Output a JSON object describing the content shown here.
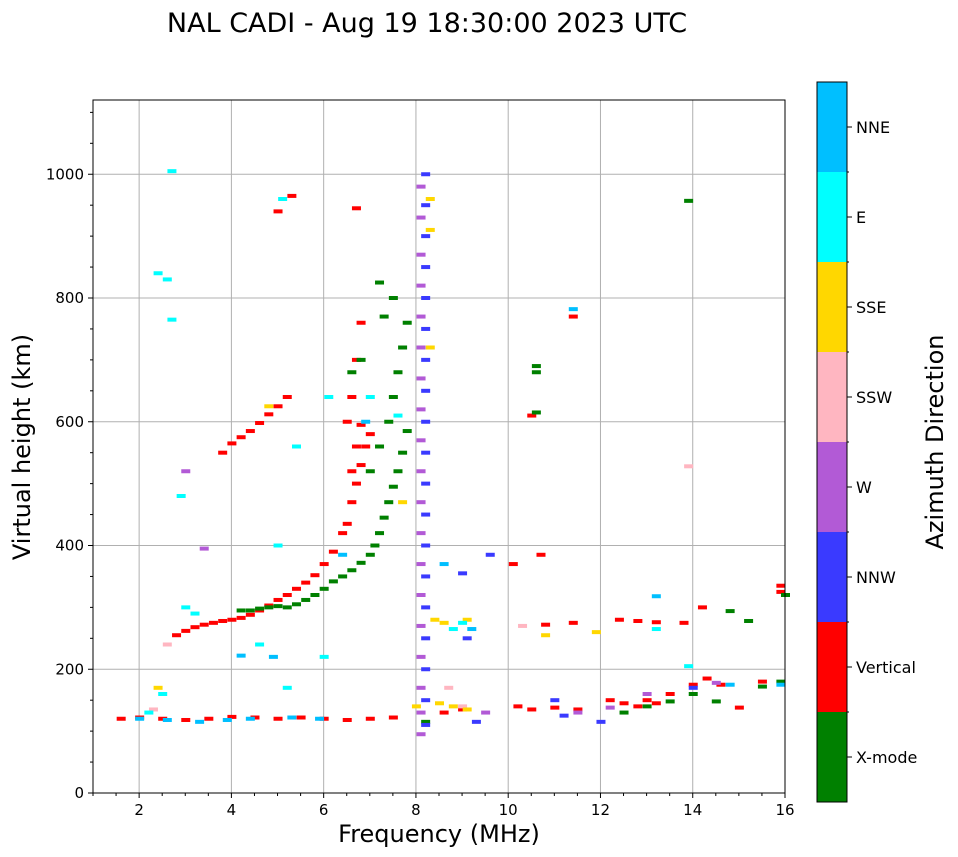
{
  "chart_data": {
    "type": "scatter",
    "title": "NAL CADI - Aug 19 18:30:00 2023 UTC",
    "xlabel": "Frequency (MHz)",
    "ylabel": "Virtual height (km)",
    "xlim": [
      1,
      16
    ],
    "ylim": [
      0,
      1120
    ],
    "xticks": [
      2,
      4,
      6,
      8,
      10,
      12,
      14,
      16
    ],
    "yticks": [
      0,
      200,
      400,
      600,
      800,
      1000
    ],
    "grid": true,
    "colorbar": {
      "label": "Azimuth Direction",
      "categories": [
        {
          "name": "X-mode",
          "color": "#008000"
        },
        {
          "name": "Vertical",
          "color": "#ff0000"
        },
        {
          "name": "NNW",
          "color": "#3a3aff"
        },
        {
          "name": "W",
          "color": "#b25ad6"
        },
        {
          "name": "SSW",
          "color": "#ffb6c1"
        },
        {
          "name": "SSE",
          "color": "#ffd700"
        },
        {
          "name": "E",
          "color": "#00ffff"
        },
        {
          "name": "NNE",
          "color": "#00bfff"
        }
      ]
    },
    "series": [
      {
        "name": "Vertical",
        "color": "#ff0000",
        "points": [
          [
            2.8,
            255
          ],
          [
            3.0,
            262
          ],
          [
            3.2,
            268
          ],
          [
            3.4,
            272
          ],
          [
            3.6,
            275
          ],
          [
            3.8,
            278
          ],
          [
            4.0,
            280
          ],
          [
            4.2,
            283
          ],
          [
            4.4,
            288
          ],
          [
            4.6,
            295
          ],
          [
            4.8,
            303
          ],
          [
            5.0,
            312
          ],
          [
            5.2,
            320
          ],
          [
            5.4,
            330
          ],
          [
            5.6,
            340
          ],
          [
            5.8,
            352
          ],
          [
            6.0,
            370
          ],
          [
            6.2,
            390
          ],
          [
            6.4,
            420
          ],
          [
            6.5,
            435
          ],
          [
            6.6,
            470
          ],
          [
            6.7,
            500
          ],
          [
            6.8,
            530
          ],
          [
            6.9,
            560
          ],
          [
            7.0,
            580
          ],
          [
            3.8,
            550
          ],
          [
            4.0,
            565
          ],
          [
            4.2,
            575
          ],
          [
            4.4,
            585
          ],
          [
            4.6,
            598
          ],
          [
            4.8,
            612
          ],
          [
            5.0,
            625
          ],
          [
            5.2,
            640
          ],
          [
            6.6,
            520
          ],
          [
            6.7,
            560
          ],
          [
            6.8,
            595
          ],
          [
            6.5,
            600
          ],
          [
            6.6,
            640
          ],
          [
            6.7,
            700
          ],
          [
            6.8,
            760
          ],
          [
            6.7,
            945
          ],
          [
            5.0,
            940
          ],
          [
            5.3,
            965
          ],
          [
            1.6,
            120
          ],
          [
            2.0,
            122
          ],
          [
            2.5,
            120
          ],
          [
            3.0,
            118
          ],
          [
            3.5,
            120
          ],
          [
            4.0,
            123
          ],
          [
            4.5,
            122
          ],
          [
            5.0,
            120
          ],
          [
            5.5,
            122
          ],
          [
            6.0,
            120
          ],
          [
            6.5,
            118
          ],
          [
            7.0,
            120
          ],
          [
            7.5,
            122
          ],
          [
            8.6,
            130
          ],
          [
            9.0,
            135
          ],
          [
            10.2,
            140
          ],
          [
            10.5,
            135
          ],
          [
            11.0,
            138
          ],
          [
            11.5,
            135
          ],
          [
            12.2,
            150
          ],
          [
            12.5,
            145
          ],
          [
            12.8,
            140
          ],
          [
            13.0,
            150
          ],
          [
            13.2,
            145
          ],
          [
            13.5,
            160
          ],
          [
            14.0,
            175
          ],
          [
            14.3,
            185
          ],
          [
            14.6,
            175
          ],
          [
            15.0,
            138
          ],
          [
            15.5,
            180
          ],
          [
            10.1,
            370
          ],
          [
            10.7,
            385
          ],
          [
            10.8,
            272
          ],
          [
            11.4,
            275
          ],
          [
            12.4,
            280
          ],
          [
            12.8,
            278
          ],
          [
            13.2,
            276
          ],
          [
            13.8,
            275
          ],
          [
            14.2,
            300
          ],
          [
            15.9,
            325
          ],
          [
            15.9,
            335
          ],
          [
            10.5,
            610
          ],
          [
            11.4,
            770
          ]
        ]
      },
      {
        "name": "X-mode",
        "color": "#008000",
        "points": [
          [
            4.2,
            295
          ],
          [
            4.4,
            295
          ],
          [
            4.6,
            298
          ],
          [
            4.8,
            300
          ],
          [
            5.0,
            302
          ],
          [
            5.2,
            300
          ],
          [
            5.4,
            305
          ],
          [
            5.6,
            312
          ],
          [
            5.8,
            320
          ],
          [
            6.0,
            330
          ],
          [
            6.2,
            342
          ],
          [
            6.4,
            350
          ],
          [
            6.6,
            360
          ],
          [
            6.8,
            372
          ],
          [
            7.0,
            385
          ],
          [
            7.1,
            400
          ],
          [
            7.2,
            420
          ],
          [
            7.3,
            445
          ],
          [
            7.4,
            470
          ],
          [
            7.5,
            495
          ],
          [
            7.6,
            520
          ],
          [
            7.7,
            550
          ],
          [
            7.8,
            585
          ],
          [
            7.0,
            520
          ],
          [
            7.2,
            560
          ],
          [
            7.4,
            600
          ],
          [
            7.5,
            640
          ],
          [
            7.6,
            680
          ],
          [
            7.7,
            720
          ],
          [
            7.8,
            760
          ],
          [
            7.3,
            770
          ],
          [
            7.5,
            800
          ],
          [
            7.2,
            825
          ],
          [
            6.8,
            700
          ],
          [
            6.6,
            680
          ],
          [
            8.2,
            115
          ],
          [
            12.5,
            130
          ],
          [
            13.0,
            140
          ],
          [
            13.5,
            148
          ],
          [
            14.0,
            160
          ],
          [
            14.5,
            148
          ],
          [
            15.5,
            172
          ],
          [
            15.9,
            180
          ],
          [
            13.9,
            957
          ],
          [
            10.6,
            690
          ],
          [
            10.6,
            680
          ],
          [
            15.2,
            278
          ],
          [
            16.0,
            320
          ],
          [
            14.8,
            294
          ],
          [
            10.6,
            615
          ]
        ]
      },
      {
        "name": "NNW",
        "color": "#3a3aff",
        "points": [
          [
            8.2,
            1000
          ],
          [
            8.2,
            950
          ],
          [
            8.2,
            900
          ],
          [
            8.2,
            850
          ],
          [
            8.2,
            800
          ],
          [
            8.2,
            750
          ],
          [
            8.2,
            700
          ],
          [
            8.2,
            650
          ],
          [
            8.2,
            600
          ],
          [
            8.2,
            550
          ],
          [
            8.2,
            500
          ],
          [
            8.2,
            450
          ],
          [
            8.2,
            400
          ],
          [
            8.2,
            350
          ],
          [
            8.2,
            300
          ],
          [
            8.2,
            250
          ],
          [
            8.2,
            200
          ],
          [
            8.2,
            150
          ],
          [
            8.2,
            110
          ],
          [
            9.1,
            250
          ],
          [
            9.0,
            355
          ],
          [
            9.3,
            115
          ],
          [
            9.6,
            385
          ],
          [
            11.0,
            150
          ],
          [
            11.2,
            125
          ],
          [
            12.0,
            115
          ],
          [
            14.0,
            170
          ]
        ]
      },
      {
        "name": "W",
        "color": "#b25ad6",
        "points": [
          [
            8.1,
            980
          ],
          [
            8.1,
            930
          ],
          [
            8.1,
            870
          ],
          [
            8.1,
            820
          ],
          [
            8.1,
            770
          ],
          [
            8.1,
            720
          ],
          [
            8.1,
            670
          ],
          [
            8.1,
            620
          ],
          [
            8.1,
            570
          ],
          [
            8.1,
            520
          ],
          [
            8.1,
            470
          ],
          [
            8.1,
            420
          ],
          [
            8.1,
            370
          ],
          [
            8.1,
            320
          ],
          [
            8.1,
            270
          ],
          [
            8.1,
            220
          ],
          [
            8.1,
            170
          ],
          [
            8.1,
            130
          ],
          [
            8.1,
            95
          ],
          [
            9.5,
            130
          ],
          [
            11.5,
            130
          ],
          [
            12.2,
            138
          ],
          [
            13.0,
            160
          ],
          [
            14.5,
            178
          ],
          [
            3.4,
            395
          ],
          [
            3.0,
            520
          ]
        ]
      },
      {
        "name": "SSW",
        "color": "#ffb6c1",
        "points": [
          [
            10.3,
            270
          ],
          [
            13.9,
            528
          ],
          [
            2.6,
            240
          ],
          [
            2.3,
            135
          ],
          [
            9.0,
            140
          ],
          [
            8.7,
            170
          ]
        ]
      },
      {
        "name": "SSE",
        "color": "#ffd700",
        "points": [
          [
            8.0,
            140
          ],
          [
            8.5,
            145
          ],
          [
            8.8,
            140
          ],
          [
            9.1,
            135
          ],
          [
            8.4,
            280
          ],
          [
            8.6,
            275
          ],
          [
            9.1,
            280
          ],
          [
            10.8,
            255
          ],
          [
            11.9,
            260
          ],
          [
            4.8,
            625
          ],
          [
            7.7,
            470
          ],
          [
            2.4,
            170
          ],
          [
            8.3,
            960
          ],
          [
            8.3,
            910
          ],
          [
            8.3,
            720
          ]
        ]
      },
      {
        "name": "E",
        "color": "#00ffff",
        "points": [
          [
            2.4,
            840
          ],
          [
            2.6,
            830
          ],
          [
            2.7,
            765
          ],
          [
            2.9,
            480
          ],
          [
            3.0,
            300
          ],
          [
            3.2,
            290
          ],
          [
            5.2,
            170
          ],
          [
            2.2,
            130
          ],
          [
            2.5,
            160
          ],
          [
            4.6,
            240
          ],
          [
            5.1,
            960
          ],
          [
            5.4,
            560
          ],
          [
            6.1,
            640
          ],
          [
            7.0,
            640
          ],
          [
            7.6,
            610
          ],
          [
            8.8,
            265
          ],
          [
            9.0,
            275
          ],
          [
            13.2,
            265
          ],
          [
            13.9,
            205
          ],
          [
            2.7,
            1005
          ],
          [
            5.0,
            400
          ],
          [
            6.0,
            220
          ]
        ]
      },
      {
        "name": "NNE",
        "color": "#00bfff",
        "points": [
          [
            2.0,
            120
          ],
          [
            2.6,
            118
          ],
          [
            3.3,
            115
          ],
          [
            3.9,
            118
          ],
          [
            4.4,
            120
          ],
          [
            5.3,
            122
          ],
          [
            5.9,
            120
          ],
          [
            4.2,
            222
          ],
          [
            4.9,
            220
          ],
          [
            6.4,
            385
          ],
          [
            6.9,
            600
          ],
          [
            8.6,
            370
          ],
          [
            9.2,
            265
          ],
          [
            13.2,
            318
          ],
          [
            14.8,
            175
          ],
          [
            15.9,
            175
          ],
          [
            11.4,
            782
          ]
        ]
      }
    ]
  }
}
